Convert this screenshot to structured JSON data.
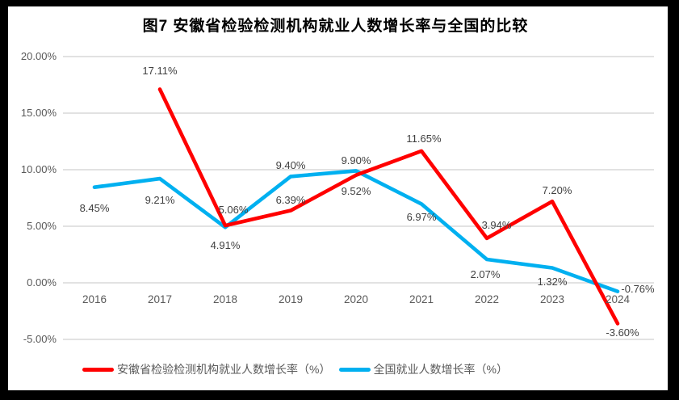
{
  "chart_data": {
    "type": "line",
    "title": "图7 安徽省检验检测机构就业人数增长率与全国的比较",
    "categories": [
      "2016",
      "2017",
      "2018",
      "2019",
      "2020",
      "2021",
      "2022",
      "2023",
      "2024"
    ],
    "series": [
      {
        "name": "安徽省检验检测机构就业人数增长率（%）",
        "color": "#FF0000",
        "values": [
          null,
          17.11,
          5.06,
          6.39,
          9.52,
          11.65,
          3.94,
          7.2,
          -3.6
        ],
        "point_labels": [
          "",
          "17.11%",
          "5.06%",
          "6.39%",
          "9.52%",
          "11.65%",
          "3.94%",
          "7.20%",
          "-3.60%"
        ]
      },
      {
        "name": "全国就业人数增长率（%）",
        "color": "#00B0F0",
        "values": [
          8.45,
          9.21,
          4.91,
          9.4,
          9.9,
          6.97,
          2.07,
          1.32,
          -0.76
        ],
        "point_labels": [
          "8.45%",
          "9.21%",
          "4.91%",
          "9.40%",
          "9.90%",
          "6.97%",
          "2.07%",
          "1.32%",
          "-0.76%"
        ]
      }
    ],
    "y_axis": {
      "ticks": [
        "20.00%",
        "15.00%",
        "10.00%",
        "5.00%",
        "0.00%",
        "-5.00%"
      ],
      "tick_values": [
        20,
        15,
        10,
        5,
        0,
        -5
      ],
      "min": -5,
      "max": 20,
      "format": "percent"
    },
    "x_axis": {
      "tick_labels": [
        "2016",
        "2017",
        "2018",
        "2019",
        "2020",
        "2021",
        "2022",
        "2023",
        "2024"
      ]
    },
    "grid": true,
    "legend_position": "bottom",
    "colors": {
      "grid": "#D9D9D9",
      "axis_text": "#595959",
      "data_label_text": "#404040",
      "frame": "#000000",
      "background": "#FFFFFF",
      "anhui_series": "#FF0000",
      "national_series": "#00B0F0"
    }
  }
}
